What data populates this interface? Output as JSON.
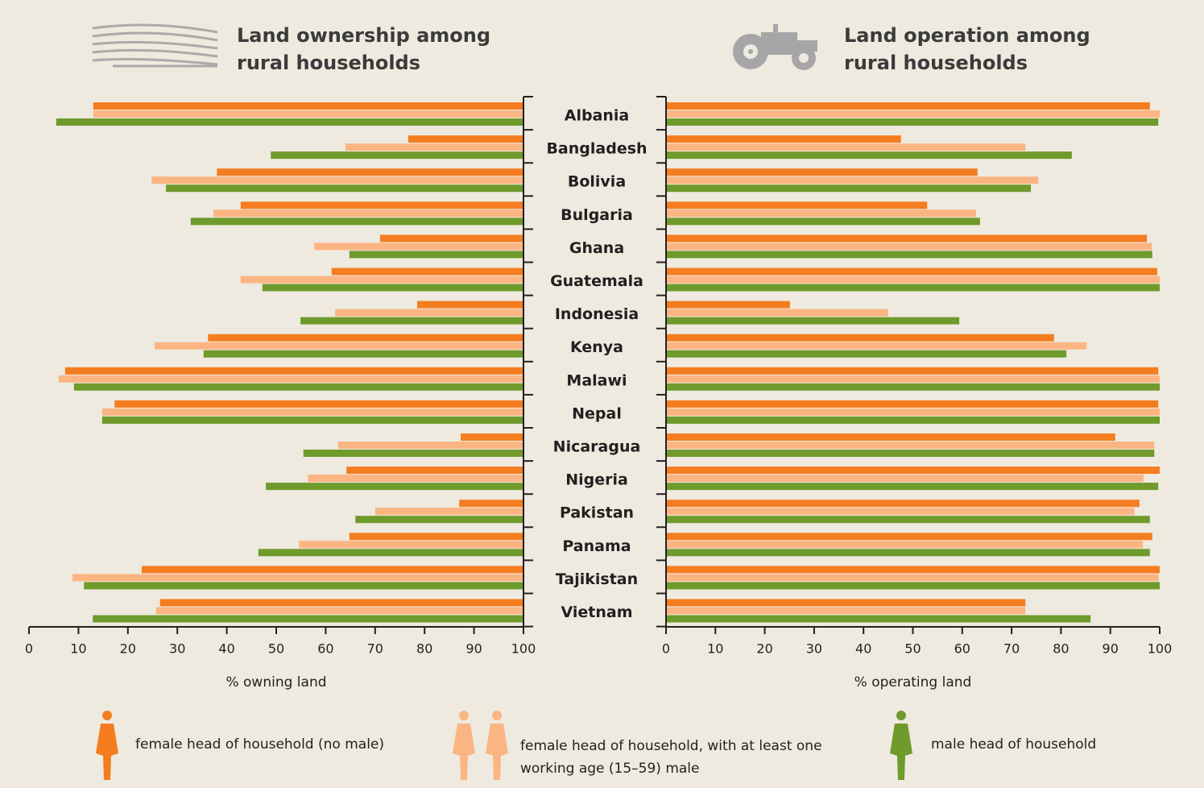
{
  "chart_data": [
    {
      "type": "bar",
      "orientation": "horizontal-reversed",
      "title": "Land ownership among rural households",
      "x_label": "% owning land",
      "categories": [
        "Albania",
        "Bangladesh",
        "Bolivia",
        "Bulgaria",
        "Ghana",
        "Guatemala",
        "Indonesia",
        "Kenya",
        "Malawi",
        "Nepal",
        "Nicaragua",
        "Nigeria",
        "Pakistan",
        "Panama",
        "Tajikistan",
        "Vietnam"
      ],
      "xlim": [
        0,
        100
      ],
      "xticks": [
        0,
        10,
        20,
        30,
        40,
        50,
        60,
        70,
        80,
        90,
        100
      ],
      "series": [
        {
          "name": "female head of household (no male)",
          "color": "#f47d20",
          "values": [
            13,
            76.7,
            38,
            42.8,
            71,
            61.2,
            78.5,
            36.2,
            7.3,
            17.3,
            87.3,
            64.2,
            87,
            64.8,
            22.8,
            26.5
          ]
        },
        {
          "name": "female head of household, with at least one working age (15–59) male",
          "color": "#fbb583",
          "values": [
            13,
            64,
            24.8,
            37.3,
            57.7,
            42.8,
            61.9,
            25.4,
            6,
            14.8,
            62.5,
            56.4,
            70,
            54.6,
            8.8,
            25.7
          ]
        },
        {
          "name": "male head of household",
          "color": "#6f9a2c",
          "values": [
            5.5,
            48.9,
            27.7,
            32.7,
            64.8,
            47.2,
            54.9,
            35.3,
            9.1,
            14.8,
            55.5,
            47.9,
            66,
            46.4,
            11.1,
            12.9
          ]
        }
      ]
    },
    {
      "type": "bar",
      "orientation": "horizontal",
      "title": "Land operation among rural households",
      "x_label": "% operating land",
      "xlim": [
        0,
        100
      ],
      "xticks": [
        0,
        10,
        20,
        30,
        40,
        50,
        60,
        70,
        80,
        90,
        100
      ],
      "series": [
        {
          "color": "#f47d20",
          "values": [
            98,
            47.6,
            63.1,
            52.9,
            97.4,
            99.5,
            25.1,
            78.6,
            99.7,
            99.7,
            91,
            100,
            95.9,
            98.5,
            100,
            72.8
          ]
        },
        {
          "color": "#fbb583",
          "values": [
            100,
            72.8,
            75.4,
            62.8,
            98.4,
            100,
            45,
            85.2,
            100,
            100,
            98.9,
            96.7,
            94.9,
            96.6,
            99.8,
            72.8
          ]
        },
        {
          "color": "#6f9a2c",
          "values": [
            99.7,
            82.2,
            73.9,
            63.6,
            98.5,
            100,
            59.4,
            81.1,
            100,
            100,
            98.9,
            99.7,
            98,
            98,
            100,
            86
          ]
        }
      ]
    }
  ]
}
